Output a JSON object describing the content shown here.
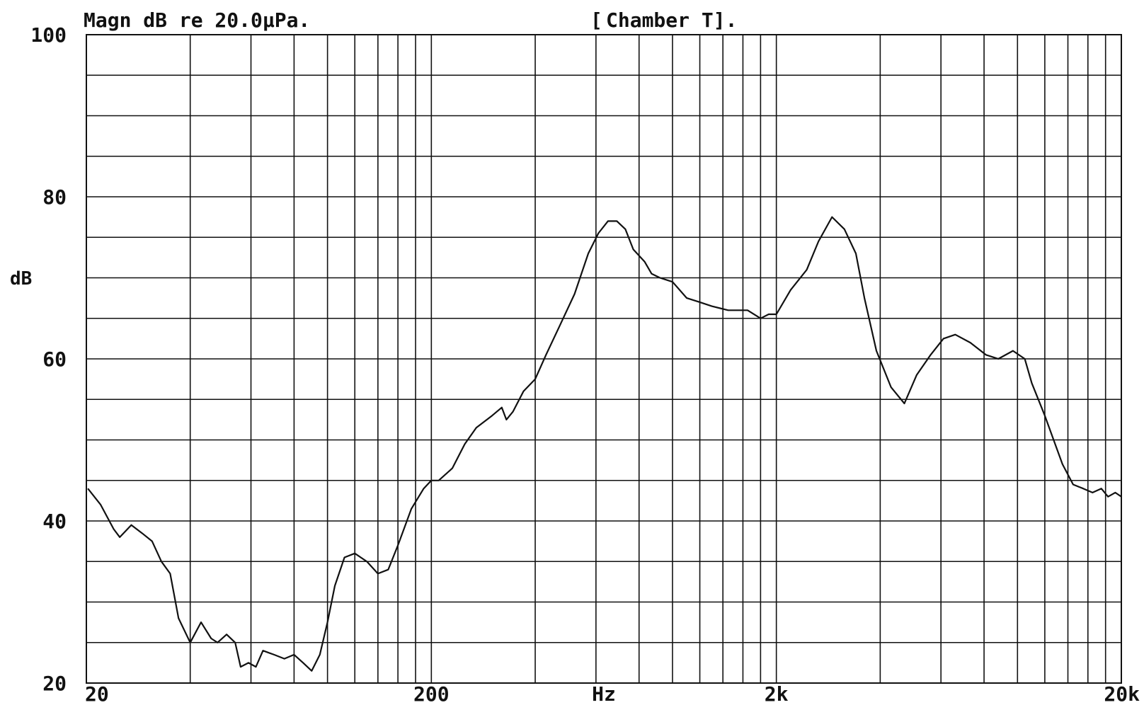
{
  "chart_data": {
    "type": "line",
    "title": "Magn dB re 20.0µPa.",
    "subtitle": "Chamber T].",
    "subtitle_bracket": "[",
    "ylabel": "dB",
    "xlabel": "Hz",
    "x_scale": "log",
    "xlim": [
      20,
      20000
    ],
    "ylim": [
      20,
      100
    ],
    "grid": true,
    "y_ticks": [
      {
        "value": 100,
        "label": "100"
      },
      {
        "value": 80,
        "label": "80"
      },
      {
        "value": 60,
        "label": "60"
      },
      {
        "value": 40,
        "label": "40"
      },
      {
        "value": 20,
        "label": "20"
      }
    ],
    "x_ticks": [
      {
        "value": 20,
        "label": "20"
      },
      {
        "value": 200,
        "label": "200"
      },
      {
        "value": 2000,
        "label": "2k"
      },
      {
        "value": 20000,
        "label": "20k"
      }
    ],
    "color": "#111111",
    "series": [
      {
        "points": [
          [
            20.2,
            44.0
          ],
          [
            22,
            42.0
          ],
          [
            24,
            39.0
          ],
          [
            25,
            38.0
          ],
          [
            27,
            39.5
          ],
          [
            29,
            38.5
          ],
          [
            31,
            37.5
          ],
          [
            33,
            35.0
          ],
          [
            35,
            33.5
          ],
          [
            37,
            28.0
          ],
          [
            40,
            25.0
          ],
          [
            43,
            27.5
          ],
          [
            46,
            25.5
          ],
          [
            48,
            25.0
          ],
          [
            51,
            26.0
          ],
          [
            54,
            25.0
          ],
          [
            56,
            22.0
          ],
          [
            59,
            22.5
          ],
          [
            62,
            22.0
          ],
          [
            65,
            24.0
          ],
          [
            70,
            23.5
          ],
          [
            75,
            23.0
          ],
          [
            80,
            23.5
          ],
          [
            85,
            22.5
          ],
          [
            90,
            21.5
          ],
          [
            95,
            23.5
          ],
          [
            100,
            27.5
          ],
          [
            105,
            32.0
          ],
          [
            112,
            35.5
          ],
          [
            120,
            36.0
          ],
          [
            130,
            35.0
          ],
          [
            140,
            33.5
          ],
          [
            150,
            34.0
          ],
          [
            160,
            37.0
          ],
          [
            175,
            41.5
          ],
          [
            190,
            44.0
          ],
          [
            200,
            45.0
          ],
          [
            210,
            45.0
          ],
          [
            230,
            46.5
          ],
          [
            250,
            49.5
          ],
          [
            270,
            51.5
          ],
          [
            300,
            53.0
          ],
          [
            320,
            54.0
          ],
          [
            330,
            52.5
          ],
          [
            345,
            53.5
          ],
          [
            370,
            56.0
          ],
          [
            400,
            57.5
          ],
          [
            430,
            60.5
          ],
          [
            470,
            64.0
          ],
          [
            520,
            68.0
          ],
          [
            570,
            73.0
          ],
          [
            610,
            75.5
          ],
          [
            650,
            77.0
          ],
          [
            690,
            77.0
          ],
          [
            730,
            76.0
          ],
          [
            770,
            73.5
          ],
          [
            830,
            72.0
          ],
          [
            870,
            70.5
          ],
          [
            920,
            70.0
          ],
          [
            1000,
            69.5
          ],
          [
            1100,
            67.5
          ],
          [
            1200,
            67.0
          ],
          [
            1300,
            66.5
          ],
          [
            1450,
            66.0
          ],
          [
            1650,
            66.0
          ],
          [
            1800,
            65.0
          ],
          [
            1900,
            65.5
          ],
          [
            2000,
            65.5
          ],
          [
            2200,
            68.5
          ],
          [
            2450,
            71.0
          ],
          [
            2650,
            74.5
          ],
          [
            2900,
            77.5
          ],
          [
            3150,
            76.0
          ],
          [
            3400,
            73.0
          ],
          [
            3600,
            67.5
          ],
          [
            3900,
            61.0
          ],
          [
            4300,
            56.5
          ],
          [
            4700,
            54.5
          ],
          [
            5100,
            58.0
          ],
          [
            5600,
            60.5
          ],
          [
            6100,
            62.5
          ],
          [
            6600,
            63.0
          ],
          [
            7300,
            62.0
          ],
          [
            8100,
            60.5
          ],
          [
            8800,
            60.0
          ],
          [
            9700,
            61.0
          ],
          [
            10500,
            60.0
          ],
          [
            11000,
            57.0
          ],
          [
            12000,
            53.0
          ],
          [
            13500,
            47.0
          ],
          [
            14500,
            44.5
          ],
          [
            15500,
            44.0
          ],
          [
            16500,
            43.5
          ],
          [
            17500,
            44.0
          ],
          [
            18300,
            43.0
          ],
          [
            19200,
            43.5
          ],
          [
            20000,
            43.0
          ]
        ]
      }
    ]
  }
}
